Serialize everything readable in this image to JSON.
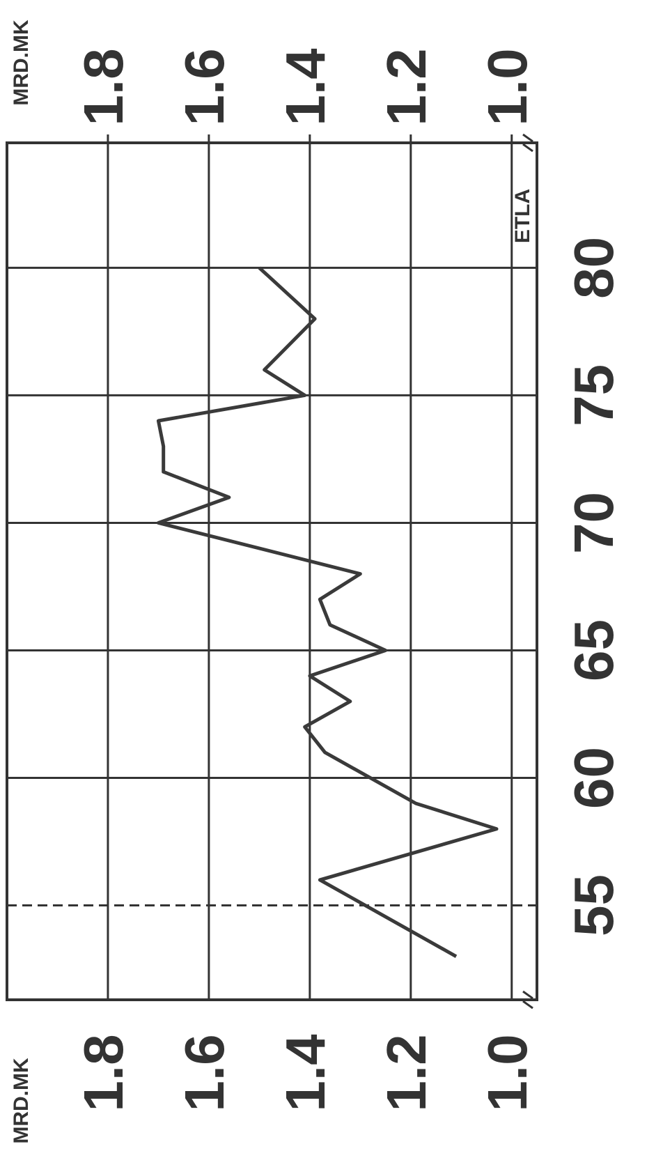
{
  "chart_data": {
    "type": "line",
    "annotations": [
      "MRD.MK",
      "MRD.MK",
      "ETLA"
    ],
    "x": [
      53,
      56,
      58,
      59,
      61,
      62,
      63,
      64,
      65,
      66,
      67,
      68,
      70,
      71,
      72,
      73,
      74,
      75,
      76,
      78,
      80
    ],
    "series": [
      {
        "color": "#3a3a3a",
        "values": [
          1.11,
          1.38,
          1.03,
          1.19,
          1.37,
          1.41,
          1.32,
          1.4,
          1.25,
          1.36,
          1.38,
          1.3,
          1.7,
          1.56,
          1.69,
          1.69,
          1.7,
          1.41,
          1.49,
          1.39,
          1.5
        ]
      }
    ],
    "xlim": [
      51.3,
      84.9
    ],
    "xticks": [
      55,
      60,
      65,
      70,
      75,
      80
    ],
    "ylim": [
      0.95,
      2.0
    ],
    "yticks": [
      {
        "value": 1,
        "label": "1.0"
      },
      1.2,
      1.4,
      1.6,
      1.8
    ],
    "y2lim": [
      0.95,
      2.0
    ],
    "y2ticks": [
      {
        "value": 1,
        "label": "1.0"
      },
      1.2,
      1.4,
      1.6,
      1.8
    ],
    "grid": true
  }
}
